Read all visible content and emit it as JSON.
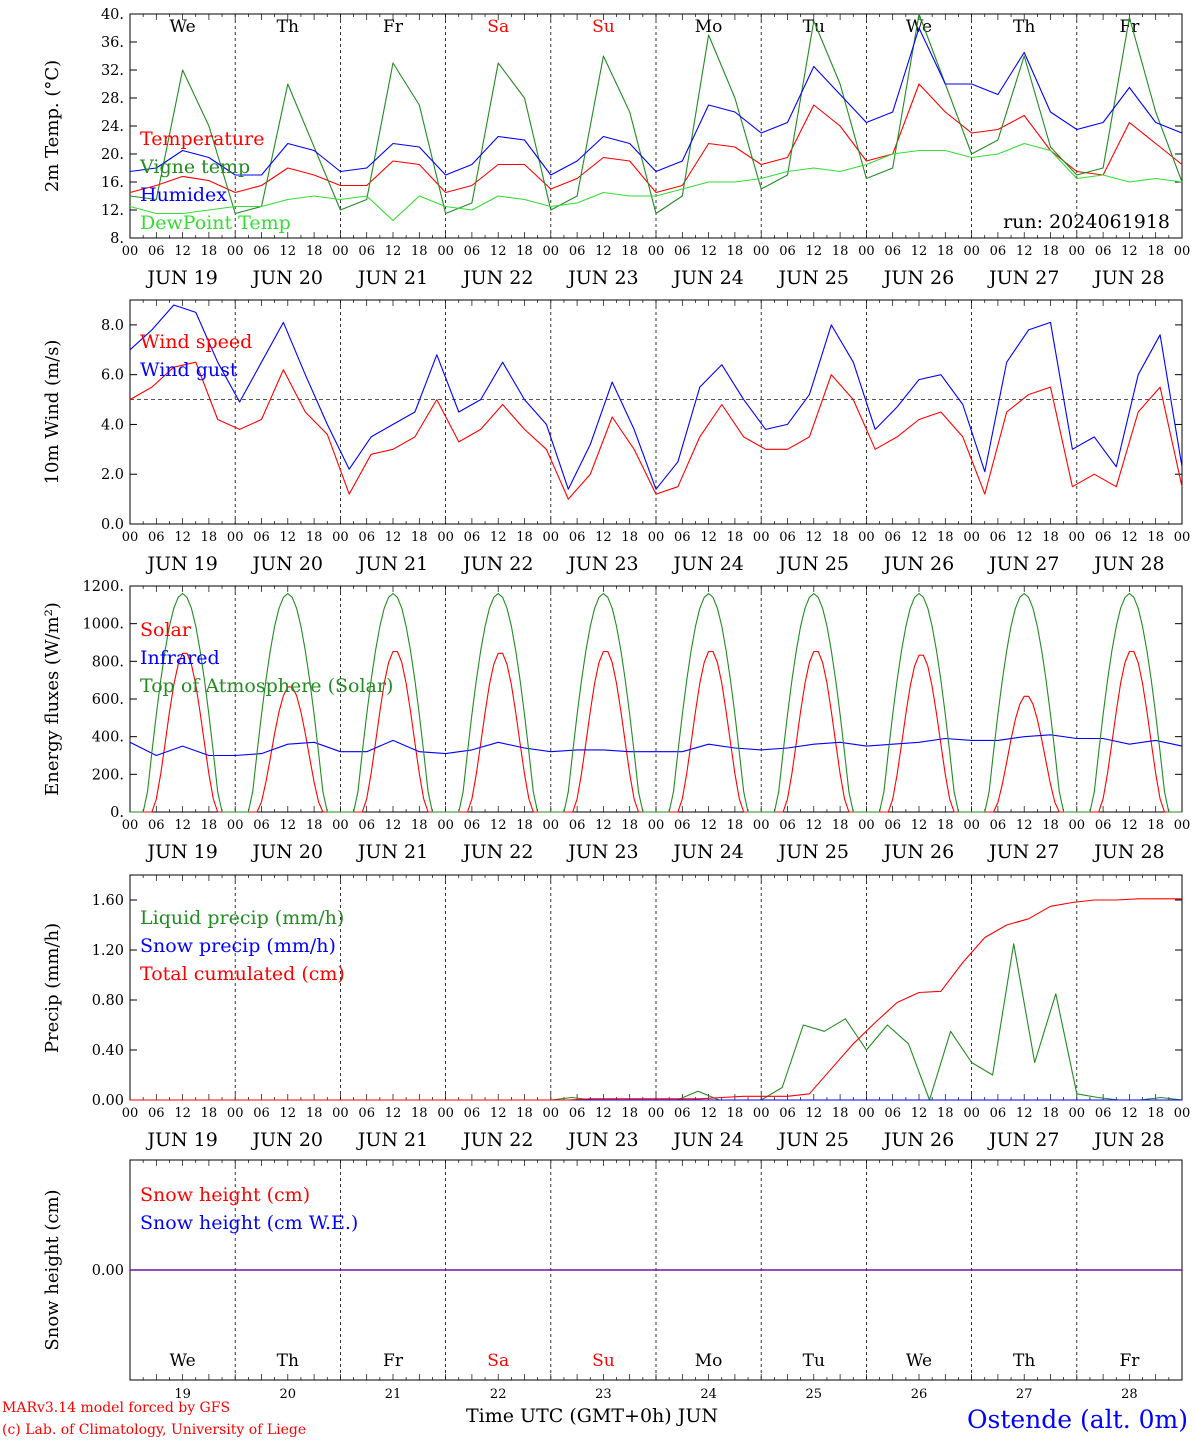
{
  "chart_data": [
    {
      "type": "line",
      "ylabel": "2m Temp. (°C)",
      "ylim": [
        8,
        40
      ],
      "yticks": [
        "8.",
        "12.",
        "16.",
        "20.",
        "24.",
        "28.",
        "32.",
        "36.",
        "40."
      ],
      "x_hours": [
        0,
        6,
        12,
        18,
        24,
        30,
        36,
        42,
        48,
        54,
        60,
        66,
        72,
        78,
        84,
        90,
        96,
        102,
        108,
        114,
        120,
        126,
        132,
        138,
        144,
        150,
        156,
        162,
        168,
        174,
        180,
        186,
        192,
        198,
        204,
        210,
        216,
        222,
        228,
        234,
        240
      ],
      "day_labels": [
        "We",
        "Th",
        "Fr",
        "Sa",
        "Su",
        "Mo",
        "Tu",
        "We",
        "Th",
        "Fr"
      ],
      "date_labels": [
        "JUN 19",
        "JUN 20",
        "JUN 21",
        "JUN 22",
        "JUN 23",
        "JUN 24",
        "JUN 25",
        "JUN 26",
        "JUN 27",
        "JUN 28"
      ],
      "annotation": "run: 2024061918",
      "series": [
        {
          "name": "Temperature",
          "color": "#ff0000",
          "values": [
            14.5,
            15.5,
            16.8,
            16.2,
            14.5,
            15.5,
            18.0,
            17.0,
            15.5,
            15.5,
            19.0,
            18.5,
            14.5,
            15.5,
            18.5,
            18.5,
            15.0,
            16.5,
            19.5,
            19.0,
            14.5,
            15.5,
            21.5,
            21.0,
            18.5,
            19.5,
            27.0,
            24.0,
            19.0,
            20.0,
            30.0,
            26.0,
            23.0,
            23.5,
            25.5,
            20.5,
            17.5,
            17.0,
            24.5,
            21.5,
            18.5
          ]
        },
        {
          "name": "Vigne temp",
          "color": "#228b22",
          "values": [
            14.0,
            13.5,
            32.0,
            24.0,
            11.5,
            12.5,
            30.0,
            21.0,
            12.0,
            13.5,
            33.0,
            27.0,
            11.5,
            13.0,
            33.0,
            28.0,
            12.0,
            14.0,
            34.0,
            26.0,
            11.5,
            14.0,
            37.0,
            28.0,
            15.0,
            17.0,
            39.0,
            30.0,
            16.5,
            18.0,
            40.0,
            30.0,
            20.0,
            22.0,
            34.0,
            21.0,
            17.0,
            18.0,
            39.5,
            26.0,
            16.0
          ]
        },
        {
          "name": "Humidex",
          "color": "#0000ff",
          "values": [
            17.5,
            18.0,
            20.5,
            19.5,
            17.0,
            17.0,
            21.5,
            20.5,
            17.5,
            18.0,
            21.5,
            21.0,
            17.0,
            18.5,
            22.5,
            22.0,
            17.0,
            19.0,
            22.5,
            21.5,
            17.5,
            19.0,
            27.0,
            26.0,
            23.0,
            24.5,
            32.5,
            28.5,
            24.5,
            26.0,
            38.0,
            30.0,
            30.0,
            28.5,
            34.5,
            26.0,
            23.5,
            24.5,
            29.5,
            24.5,
            23.0
          ]
        },
        {
          "name": "DewPoint Temp",
          "color": "#33dd33",
          "values": [
            12.5,
            11.5,
            11.5,
            12.0,
            12.5,
            12.5,
            13.5,
            14.0,
            13.5,
            14.0,
            10.5,
            14.0,
            12.5,
            12.0,
            14.0,
            13.5,
            12.5,
            13.0,
            14.5,
            14.0,
            14.0,
            15.0,
            16.0,
            16.0,
            16.5,
            17.5,
            18.0,
            17.5,
            18.5,
            20.0,
            20.5,
            20.5,
            19.5,
            20.0,
            21.5,
            20.5,
            16.5,
            17.0,
            16.0,
            16.5,
            16.0
          ]
        }
      ]
    },
    {
      "type": "line",
      "ylabel": "10m Wind (m/s)",
      "ylim": [
        0,
        9
      ],
      "yticks": [
        "0.0",
        "2.0",
        "4.0",
        "6.0",
        "8.0"
      ],
      "reference_line": 5.0,
      "date_labels": [
        "JUN 19",
        "JUN 20",
        "JUN 21",
        "JUN 22",
        "JUN 23",
        "JUN 24",
        "JUN 25",
        "JUN 26",
        "JUN 27",
        "JUN 28"
      ],
      "series": [
        {
          "name": "Wind speed",
          "color": "#ff0000",
          "values": [
            5.0,
            5.5,
            6.3,
            6.5,
            4.2,
            3.8,
            4.2,
            6.2,
            4.5,
            3.6,
            1.2,
            2.8,
            3.0,
            3.5,
            5.0,
            3.3,
            3.8,
            4.8,
            3.8,
            3.0,
            1.0,
            2.0,
            4.3,
            3.0,
            1.2,
            1.5,
            3.5,
            4.8,
            3.5,
            3.0,
            3.0,
            3.5,
            6.0,
            5.0,
            3.0,
            3.5,
            4.2,
            4.5,
            3.5,
            1.2,
            4.5,
            5.2,
            5.5,
            1.5,
            2.0,
            1.5,
            4.5,
            5.5,
            1.5
          ]
        },
        {
          "name": "Wind gust",
          "color": "#0000ff",
          "values": [
            7.0,
            7.8,
            8.8,
            8.5,
            6.5,
            4.9,
            6.5,
            8.1,
            6.0,
            4.0,
            2.2,
            3.5,
            4.0,
            4.5,
            6.8,
            4.5,
            5.0,
            6.5,
            5.0,
            4.0,
            1.4,
            3.2,
            5.7,
            3.8,
            1.4,
            2.5,
            5.5,
            6.4,
            5.0,
            3.8,
            4.0,
            5.2,
            8.0,
            6.5,
            3.8,
            4.7,
            5.8,
            6.0,
            4.8,
            2.1,
            6.5,
            7.8,
            8.1,
            3.0,
            3.5,
            2.3,
            6.0,
            7.6,
            2.3
          ]
        }
      ]
    },
    {
      "type": "line",
      "ylabel": "Energy fluxes (W/m²)",
      "ylim": [
        0,
        1200
      ],
      "yticks": [
        "0.",
        "200.",
        "400.",
        "600.",
        "800.",
        "1000.",
        "1200."
      ],
      "date_labels": [
        "JUN 19",
        "JUN 20",
        "JUN 21",
        "JUN 22",
        "JUN 23",
        "JUN 24",
        "JUN 25",
        "JUN 26",
        "JUN 27",
        "JUN 28"
      ],
      "series": [
        {
          "name": "Solar",
          "color": "#ff0000",
          "daily_peaks": [
            850,
            670,
            860,
            850,
            860,
            860,
            860,
            840,
            620,
            860
          ]
        },
        {
          "name": "Infrared",
          "color": "#0000ff",
          "values": [
            370,
            300,
            350,
            300,
            300,
            310,
            360,
            370,
            320,
            320,
            380,
            320,
            310,
            330,
            370,
            340,
            320,
            330,
            330,
            320,
            320,
            320,
            360,
            340,
            330,
            340,
            360,
            370,
            350,
            360,
            370,
            390,
            380,
            380,
            400,
            410,
            390,
            390,
            360,
            380,
            350
          ]
        },
        {
          "name": "Top of Atmosphere (Solar)",
          "color": "#228b22",
          "daily_peak": 1160
        }
      ]
    },
    {
      "type": "line",
      "ylabel": "Precip (mm/h)",
      "ylim": [
        0,
        1.8
      ],
      "yticks": [
        "0.00",
        "0.40",
        "0.80",
        "1.20",
        "1.60"
      ],
      "date_labels": [
        "JUN 19",
        "JUN 20",
        "JUN 21",
        "JUN 22",
        "JUN 23",
        "JUN 24",
        "JUN 25",
        "JUN 26",
        "JUN 27",
        "JUN 28"
      ],
      "series": [
        {
          "name": "Liquid precip (mm/h)",
          "color": "#228b22",
          "values": [
            0,
            0,
            0,
            0,
            0,
            0,
            0,
            0,
            0,
            0,
            0,
            0,
            0,
            0,
            0,
            0,
            0,
            0,
            0,
            0,
            0,
            0.02,
            0,
            0,
            0,
            0,
            0,
            0.07,
            0,
            0,
            0,
            0.1,
            0.6,
            0.55,
            0.65,
            0.4,
            0.6,
            0.45,
            0,
            0.55,
            0.3,
            0.2,
            1.25,
            0.3,
            0.85,
            0.05,
            0.02,
            0,
            0,
            0.02,
            0
          ]
        },
        {
          "name": "Snow precip (mm/h)",
          "color": "#0000ff",
          "values": [
            0,
            0
          ]
        },
        {
          "name": "Total cumulated (cm)",
          "color": "#ff0000",
          "values": [
            0,
            0,
            0,
            0,
            0,
            0,
            0,
            0,
            0,
            0,
            0,
            0,
            0,
            0,
            0,
            0,
            0,
            0,
            0,
            0,
            0,
            0.01,
            0.01,
            0.01,
            0.01,
            0.01,
            0.01,
            0.02,
            0.03,
            0.03,
            0.03,
            0.05,
            0.25,
            0.45,
            0.62,
            0.78,
            0.86,
            0.87,
            1.1,
            1.3,
            1.4,
            1.45,
            1.55,
            1.58,
            1.6,
            1.6,
            1.61,
            1.61,
            1.61
          ]
        }
      ]
    },
    {
      "type": "line",
      "ylabel": "Snow height (cm)",
      "yticks": [
        "0.00"
      ],
      "xlabel": "Time UTC (GMT+0h) JUN",
      "day_labels": [
        "We",
        "Th",
        "Fr",
        "Sa",
        "Su",
        "Mo",
        "Tu",
        "We",
        "Th",
        "Fr"
      ],
      "day_numbers": [
        "19",
        "20",
        "21",
        "22",
        "23",
        "24",
        "25",
        "26",
        "27",
        "28"
      ],
      "series": [
        {
          "name": "Snow height (cm)",
          "color": "#ff0000",
          "values": [
            0,
            0
          ]
        },
        {
          "name": "Snow height (cm W.E.)",
          "color": "#0000ff",
          "values": [
            0,
            0
          ]
        }
      ]
    }
  ],
  "footer": {
    "model_line": "MARv3.14 model forced by GFS",
    "credit_line": "(c) Lab. of Climatology, University of Liege",
    "station": "Ostende (alt. 0m)"
  },
  "colors": {
    "weekend_day": "#ff0000",
    "weekday": "#000000",
    "station": "#0000ff"
  }
}
